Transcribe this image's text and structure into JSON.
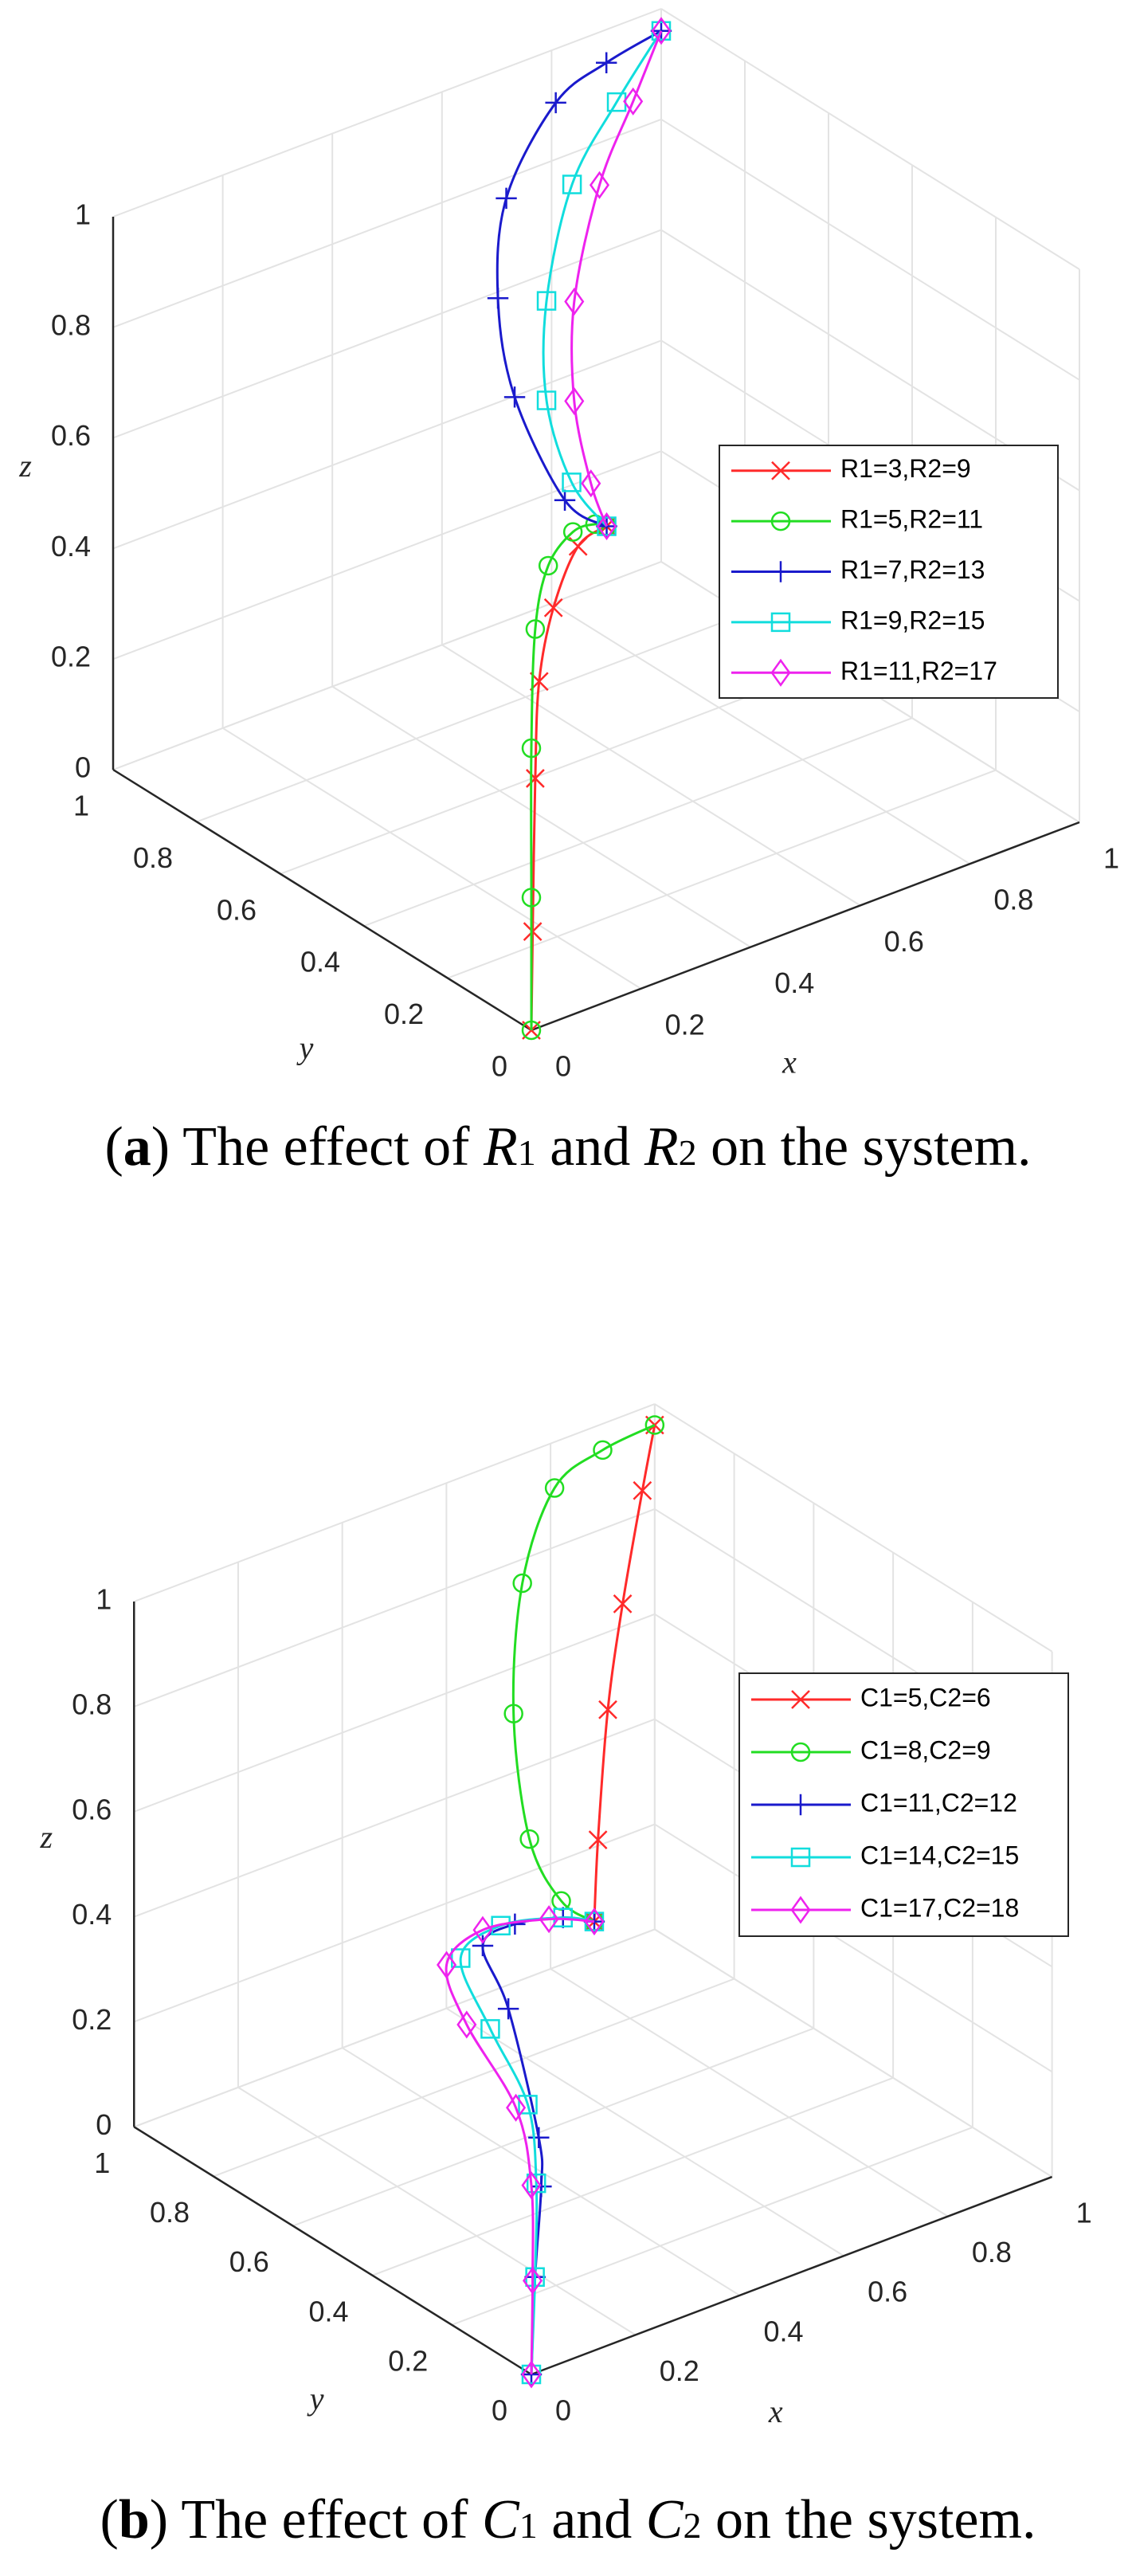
{
  "chart_data": [
    {
      "type": "line3d",
      "xlabel": "x",
      "ylabel": "y",
      "zlabel": "z",
      "xlim": [
        0,
        1
      ],
      "ylim": [
        0,
        1
      ],
      "zlim": [
        0,
        1
      ],
      "xticks": [
        0,
        0.2,
        0.4,
        0.6,
        0.8,
        1
      ],
      "yticks": [
        0,
        0.2,
        0.4,
        0.6,
        0.8,
        1
      ],
      "zticks": [
        0,
        0.2,
        0.4,
        0.6,
        0.8,
        1
      ],
      "grid": true,
      "legend": "east",
      "series": [
        {
          "name": "R1=3,R2=9",
          "color": "#ff2a2a",
          "marker": "x",
          "x": [
            0,
            0.01,
            0.03,
            0.06,
            0.17,
            0.36,
            0.58
          ],
          "y": [
            0,
            0.01,
            0.03,
            0.06,
            0.17,
            0.36,
            0.58
          ],
          "z": [
            0,
            0.17,
            0.43,
            0.58,
            0.62,
            0.57,
            0.42
          ]
        },
        {
          "name": "R1=5,R2=11",
          "color": "#22dd22",
          "marker": "o",
          "x": [
            0,
            0,
            0,
            0.03,
            0.13,
            0.32,
            0.49,
            0.58
          ],
          "y": [
            0,
            0,
            0,
            0.03,
            0.13,
            0.32,
            0.49,
            0.58
          ],
          "z": [
            0,
            0.24,
            0.51,
            0.7,
            0.73,
            0.63,
            0.5,
            0.42
          ]
        },
        {
          "name": "R1=7,R2=13",
          "color": "#1a1acc",
          "marker": "+",
          "x": [
            0.58,
            0.58,
            0.58,
            0.58,
            0.58,
            0.8,
            0.9,
            1
          ],
          "y": [
            0.58,
            0.68,
            0.8,
            0.84,
            0.82,
            0.99,
            1,
            1
          ],
          "z": [
            0.42,
            0.42,
            0.55,
            0.71,
            0.9,
            0.91,
            0.94,
            0.96
          ]
        },
        {
          "name": "R1=9,R2=15",
          "color": "#11dddd",
          "marker": "s",
          "x": [
            0.58,
            0.6,
            0.6,
            0.6,
            0.7,
            0.85,
            1
          ],
          "y": [
            0.58,
            0.69,
            0.75,
            0.75,
            0.82,
            0.91,
            1
          ],
          "z": [
            0.42,
            0.44,
            0.56,
            0.74,
            0.88,
            0.93,
            0.96
          ]
        },
        {
          "name": "R1=11,R2=17",
          "color": "#ee22ee",
          "marker": "d",
          "x": [
            0.58,
            0.62,
            0.62,
            0.62,
            0.75,
            0.88,
            1
          ],
          "y": [
            0.58,
            0.67,
            0.71,
            0.71,
            0.82,
            0.91,
            1
          ],
          "z": [
            0.42,
            0.44,
            0.57,
            0.75,
            0.86,
            0.92,
            0.96
          ]
        }
      ],
      "caption": [
        {
          "text": "(",
          "style": "normal"
        },
        {
          "text": "a",
          "style": "bold"
        },
        {
          "text": ") The effect of ",
          "style": "normal"
        },
        {
          "text": "R",
          "style": "italic"
        },
        {
          "text": "1",
          "style": "sub"
        },
        {
          "text": " and ",
          "style": "normal"
        },
        {
          "text": "R",
          "style": "italic"
        },
        {
          "text": "2",
          "style": "sub"
        },
        {
          "text": " on the system.",
          "style": "normal"
        }
      ]
    },
    {
      "type": "line3d",
      "xlabel": "x",
      "ylabel": "y",
      "zlabel": "z",
      "xlim": [
        0,
        1
      ],
      "ylim": [
        0,
        1
      ],
      "zlim": [
        0,
        1
      ],
      "xticks": [
        0,
        0.2,
        0.4,
        0.6,
        0.8,
        1
      ],
      "yticks": [
        0,
        0.2,
        0.4,
        0.6,
        0.8,
        1
      ],
      "zticks": [
        0,
        0.2,
        0.4,
        0.6,
        0.8,
        1
      ],
      "grid": true,
      "legend": "east",
      "series": [
        {
          "name": "C1=5,C2=6",
          "color": "#ff2a2a",
          "marker": "x",
          "x": [
            0.51,
            0.54,
            0.62,
            0.74,
            0.9,
            1
          ],
          "y": [
            0.51,
            0.54,
            0.62,
            0.74,
            0.9,
            1
          ],
          "z": [
            0.43,
            0.56,
            0.74,
            0.84,
            0.92,
            0.96
          ]
        },
        {
          "name": "C1=8,C2=9",
          "color": "#22dd22",
          "marker": "o",
          "x": [
            0.51,
            0.5,
            0.5,
            0.5,
            0.7,
            0.8,
            0.9,
            1
          ],
          "y": [
            0.51,
            0.58,
            0.66,
            0.7,
            0.94,
            0.99,
            1,
            1
          ],
          "z": [
            0.43,
            0.44,
            0.52,
            0.74,
            0.8,
            0.92,
            0.95,
            0.96
          ]
        },
        {
          "name": "C1=11,C2=12",
          "color": "#1a1acc",
          "marker": "+",
          "x": [
            0,
            0.03,
            0.08,
            0.06,
            0.2,
            0.25,
            0.35,
            0.45,
            0.51
          ],
          "y": [
            0,
            0.03,
            0.08,
            0.06,
            0.32,
            0.45,
            0.5,
            0.51,
            0.51
          ],
          "z": [
            0,
            0.16,
            0.29,
            0.4,
            0.47,
            0.51,
            0.49,
            0.46,
            0.43
          ]
        },
        {
          "name": "C1=14,C2=15",
          "color": "#11dddd",
          "marker": "s",
          "x": [
            0,
            0.03,
            0.04,
            0.1,
            0.15,
            0.2,
            0.3,
            0.45,
            0.51
          ],
          "y": [
            0,
            0.03,
            0.04,
            0.14,
            0.3,
            0.44,
            0.47,
            0.51,
            0.51
          ],
          "z": [
            0,
            0.16,
            0.33,
            0.41,
            0.46,
            0.51,
            0.52,
            0.46,
            0.43
          ]
        },
        {
          "name": "C1=17,C2=18",
          "color": "#ee22ee",
          "marker": "d",
          "x": [
            0,
            0.01,
            0,
            0.1,
            0.12,
            0.15,
            0.25,
            0.4,
            0.51
          ],
          "y": [
            0,
            0.01,
            0,
            0.17,
            0.32,
            0.41,
            0.45,
            0.48,
            0.51
          ],
          "z": [
            0,
            0.17,
            0.36,
            0.39,
            0.47,
            0.53,
            0.54,
            0.49,
            0.43
          ]
        }
      ],
      "caption": [
        {
          "text": "(",
          "style": "normal"
        },
        {
          "text": "b",
          "style": "bold"
        },
        {
          "text": ") The effect of ",
          "style": "normal"
        },
        {
          "text": "C",
          "style": "italic"
        },
        {
          "text": "1",
          "style": "sub"
        },
        {
          "text": " and ",
          "style": "normal"
        },
        {
          "text": "C",
          "style": "italic"
        },
        {
          "text": "2",
          "style": "sub"
        },
        {
          "text": " on the system.",
          "style": "normal"
        }
      ]
    }
  ]
}
